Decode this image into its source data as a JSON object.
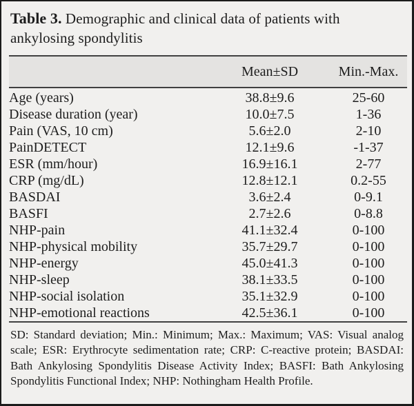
{
  "table": {
    "caption_label": "Table 3.",
    "caption_text": " Demographic and clinical data of patients with ankylosing spondylitis",
    "columns": {
      "label": "",
      "mean_sd": "Mean±SD",
      "min_max": "Min.-Max."
    },
    "rows": [
      {
        "label": "Age (years)",
        "mean_sd": "38.8±9.6",
        "min_max": "25-60"
      },
      {
        "label": "Disease duration (year)",
        "mean_sd": "10.0±7.5",
        "min_max": "1-36"
      },
      {
        "label": "Pain (VAS, 10 cm)",
        "mean_sd": "5.6±2.0",
        "min_max": "2-10"
      },
      {
        "label": "PainDETECT",
        "mean_sd": "12.1±9.6",
        "min_max": "-1-37"
      },
      {
        "label": "ESR (mm/hour)",
        "mean_sd": "16.9±16.1",
        "min_max": "2-77"
      },
      {
        "label": "CRP (mg/dL)",
        "mean_sd": "12.8±12.1",
        "min_max": "0.2-55"
      },
      {
        "label": "BASDAI",
        "mean_sd": "3.6±2.4",
        "min_max": "0-9.1"
      },
      {
        "label": "BASFI",
        "mean_sd": "2.7±2.6",
        "min_max": "0-8.8"
      },
      {
        "label": "NHP-pain",
        "mean_sd": "41.1±32.4",
        "min_max": "0-100"
      },
      {
        "label": "NHP-physical mobility",
        "mean_sd": "35.7±29.7",
        "min_max": "0-100"
      },
      {
        "label": "NHP-energy",
        "mean_sd": "45.0±41.3",
        "min_max": "0-100"
      },
      {
        "label": "NHP-sleep",
        "mean_sd": "38.1±33.5",
        "min_max": "0-100"
      },
      {
        "label": "NHP-social isolation",
        "mean_sd": "35.1±32.9",
        "min_max": "0-100"
      },
      {
        "label": "NHP-emotional reactions",
        "mean_sd": "42.5±36.1",
        "min_max": "0-100"
      }
    ],
    "footnote": "SD: Standard deviation; Min.: Minimum; Max.: Maximum; VAS: Visual analog scale; ESR: Erythrocyte sedimentation rate; CRP: C-reactive protein; BASDAI: Bath Ankylosing Spondylitis Disease Activity Index; BASFI: Bath Ankylosing Spondylitis Functional Index; NHP: Nothingham Health Profile."
  },
  "colors": {
    "background": "#f1f0ee",
    "header_band": "#e4e3e1",
    "border": "#1b1b1b",
    "rule": "#404040",
    "text": "#1d1d1d"
  }
}
